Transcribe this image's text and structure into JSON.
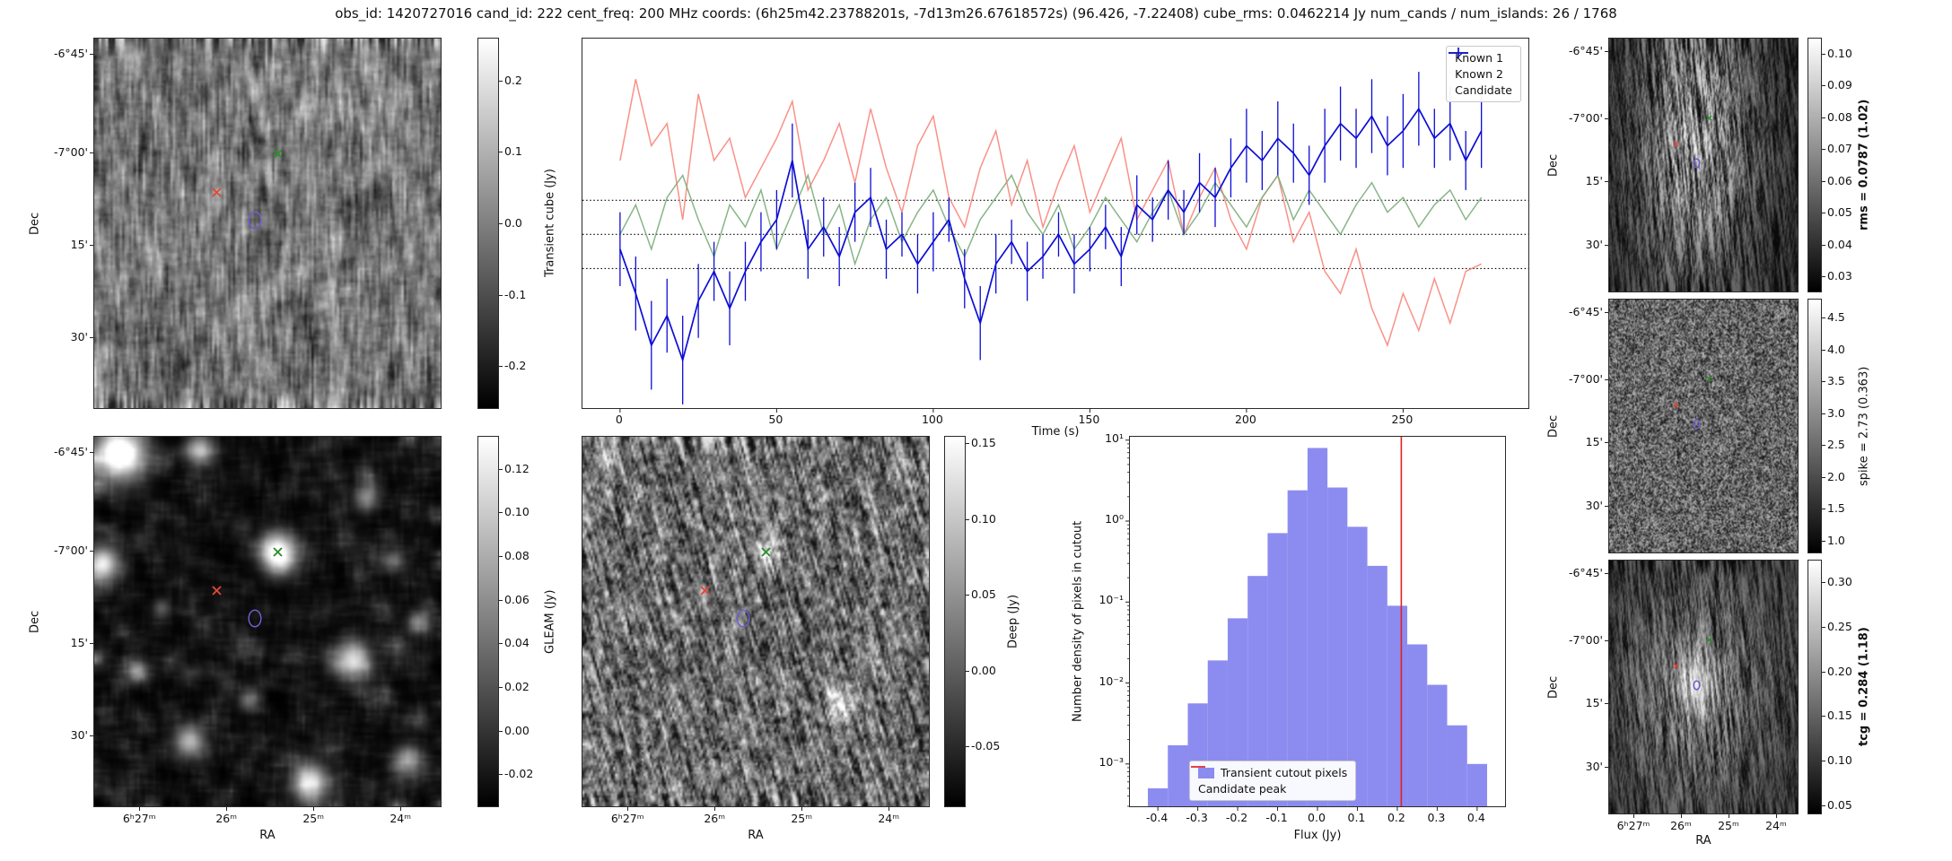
{
  "title": "obs_id: 1420727016 cand_id: 222 cent_freq: 200 MHz coords: (6h25m42.23788201s, -7d13m26.67618572s) (96.426, -7.22408) cube_rms: 0.0462214 Jy num_cands / num_islands: 26 / 1768",
  "axes": {
    "dec_label": "Dec",
    "ra_label": "RA",
    "dec_ticks": [
      "-6°45'",
      "-7°00'",
      "15'",
      "30'"
    ],
    "ra_ticks": [
      "6ʰ27ᵐ",
      "26ᵐ",
      "25ᵐ",
      "24ᵐ"
    ]
  },
  "markers": {
    "known1": {
      "name": "known1-x-marker",
      "x": 0.352,
      "y": 0.415,
      "color": "#e0483a"
    },
    "known2": {
      "name": "known2-x-marker",
      "x": 0.528,
      "y": 0.31,
      "color": "#2e8b2e"
    },
    "candidate": {
      "name": "candidate-ellipse-marker",
      "x": 0.462,
      "y": 0.488,
      "color": "#6a5fd0"
    }
  },
  "colorbars": {
    "transient": {
      "label": "Transient cube (Jy)",
      "bold": false,
      "vmin": -0.26,
      "vmax": 0.26,
      "tick_values": [
        0.2,
        0.1,
        0.0,
        -0.1,
        -0.2
      ],
      "tick_labels": [
        "0.2",
        "0.1",
        "0.0",
        "-0.1",
        "-0.2"
      ]
    },
    "gleam": {
      "label": "GLEAM (Jy)",
      "bold": false,
      "vmin": -0.035,
      "vmax": 0.135,
      "tick_values": [
        0.12,
        0.1,
        0.08,
        0.06,
        0.04,
        0.02,
        0.0,
        -0.02
      ],
      "tick_labels": [
        "0.12",
        "0.10",
        "0.08",
        "0.06",
        "0.04",
        "0.02",
        "0.00",
        "-0.02"
      ]
    },
    "deep": {
      "label": "Deep (Jy)",
      "bold": false,
      "vmin": -0.09,
      "vmax": 0.155,
      "tick_values": [
        0.15,
        0.1,
        0.05,
        0.0,
        -0.05
      ],
      "tick_labels": [
        "0.15",
        "0.10",
        "0.05",
        "0.00",
        "-0.05"
      ]
    },
    "rms": {
      "label": "rms = 0.0787 (1.02)",
      "bold": true,
      "vmin": 0.025,
      "vmax": 0.105,
      "tick_values": [
        0.1,
        0.09,
        0.08,
        0.07,
        0.06,
        0.05,
        0.04,
        0.03
      ],
      "tick_labels": [
        "0.10",
        "0.09",
        "0.08",
        "0.07",
        "0.06",
        "0.05",
        "0.04",
        "0.03"
      ]
    },
    "spike": {
      "label": "spike = 2.73 (0.363)",
      "bold": false,
      "vmin": 0.8,
      "vmax": 4.8,
      "tick_values": [
        4.5,
        4.0,
        3.5,
        3.0,
        2.5,
        2.0,
        1.5,
        1.0
      ],
      "tick_labels": [
        "4.5",
        "4.0",
        "3.5",
        "3.0",
        "2.5",
        "2.0",
        "1.5",
        "1.0"
      ]
    },
    "tcg": {
      "label": "tcg = 0.284 (1.18)",
      "bold": true,
      "vmin": 0.04,
      "vmax": 0.325,
      "tick_values": [
        0.3,
        0.25,
        0.2,
        0.15,
        0.1,
        0.05
      ],
      "tick_labels": [
        "0.30",
        "0.25",
        "0.20",
        "0.15",
        "0.10",
        "0.05"
      ]
    }
  },
  "chart_data": [
    {
      "type": "line",
      "xlabel": "Time (s)",
      "ylabel": "",
      "xlim": [
        -12,
        290
      ],
      "ylim": [
        -0.235,
        0.265
      ],
      "x_ticks": [
        0,
        50,
        100,
        150,
        200,
        250
      ],
      "x_tick_labels": [
        "0",
        "50",
        "100",
        "150",
        "200",
        "250"
      ],
      "threshold_lines": [
        0.0462,
        0.0,
        -0.0462
      ],
      "legend_position": "upper right",
      "x": [
        0,
        5,
        10,
        15,
        20,
        25,
        30,
        35,
        40,
        45,
        50,
        55,
        60,
        65,
        70,
        75,
        80,
        85,
        90,
        95,
        100,
        105,
        110,
        115,
        120,
        125,
        130,
        135,
        140,
        145,
        150,
        155,
        160,
        165,
        170,
        175,
        180,
        185,
        190,
        195,
        200,
        205,
        210,
        215,
        220,
        225,
        230,
        235,
        240,
        245,
        250,
        255,
        260,
        265,
        270,
        275
      ],
      "series": [
        {
          "name": "Known 1",
          "color": "#f8857b",
          "values": [
            0.1,
            0.21,
            0.12,
            0.15,
            0.02,
            0.19,
            0.1,
            0.13,
            0.05,
            0.09,
            0.13,
            0.18,
            0.06,
            0.1,
            0.15,
            0.07,
            0.17,
            0.09,
            0.03,
            0.12,
            0.16,
            0.05,
            0.01,
            0.09,
            0.14,
            0.04,
            0.1,
            0.01,
            0.07,
            0.12,
            0.03,
            0.08,
            0.13,
            0.02,
            0.06,
            0.1,
            0.0,
            0.05,
            0.09,
            0.02,
            -0.02,
            0.05,
            0.08,
            -0.01,
            0.03,
            -0.05,
            -0.08,
            -0.02,
            -0.1,
            -0.15,
            -0.08,
            -0.13,
            -0.06,
            -0.12,
            -0.05,
            -0.04
          ]
        },
        {
          "name": "Known 2",
          "color": "#7bad7b",
          "values": [
            0.0,
            0.04,
            -0.02,
            0.05,
            0.08,
            0.02,
            -0.03,
            0.04,
            0.01,
            0.06,
            -0.02,
            0.03,
            0.08,
            0.0,
            0.04,
            -0.04,
            0.02,
            0.05,
            -0.01,
            0.03,
            0.06,
            0.01,
            -0.03,
            0.02,
            0.05,
            0.08,
            0.03,
            0.0,
            0.04,
            -0.02,
            0.01,
            0.05,
            0.02,
            -0.01,
            0.03,
            0.06,
            0.0,
            0.03,
            0.07,
            0.04,
            0.01,
            0.05,
            0.08,
            0.02,
            0.06,
            0.03,
            0.0,
            0.04,
            0.07,
            0.03,
            0.05,
            0.01,
            0.04,
            0.06,
            0.02,
            0.05
          ]
        },
        {
          "name": "Candidate",
          "color": "#0d0dd6",
          "values": [
            -0.02,
            -0.08,
            -0.15,
            -0.11,
            -0.17,
            -0.09,
            -0.05,
            -0.1,
            -0.05,
            -0.01,
            0.02,
            0.1,
            -0.02,
            0.01,
            -0.03,
            0.03,
            0.05,
            -0.02,
            0.0,
            -0.04,
            -0.01,
            0.02,
            -0.06,
            -0.12,
            -0.04,
            -0.01,
            -0.05,
            -0.03,
            0.0,
            -0.04,
            -0.02,
            0.01,
            -0.03,
            0.04,
            0.02,
            0.06,
            0.03,
            0.07,
            0.05,
            0.09,
            0.12,
            0.1,
            0.13,
            0.11,
            0.08,
            0.12,
            0.15,
            0.13,
            0.16,
            0.12,
            0.14,
            0.17,
            0.13,
            0.15,
            0.1,
            0.14
          ],
          "errors": [
            0.05,
            0.05,
            0.06,
            0.05,
            0.06,
            0.05,
            0.04,
            0.05,
            0.04,
            0.04,
            0.04,
            0.05,
            0.04,
            0.04,
            0.04,
            0.04,
            0.04,
            0.04,
            0.03,
            0.04,
            0.04,
            0.03,
            0.04,
            0.05,
            0.04,
            0.03,
            0.04,
            0.03,
            0.03,
            0.04,
            0.03,
            0.03,
            0.04,
            0.04,
            0.03,
            0.04,
            0.03,
            0.04,
            0.04,
            0.04,
            0.05,
            0.04,
            0.05,
            0.04,
            0.04,
            0.05,
            0.05,
            0.04,
            0.05,
            0.04,
            0.05,
            0.05,
            0.04,
            0.05,
            0.04,
            0.05
          ]
        }
      ]
    },
    {
      "type": "bar",
      "xlabel": "Flux (Jy)",
      "ylabel": "Number density of pixels in cutout",
      "xlim": [
        -0.47,
        0.47
      ],
      "ylog": true,
      "ylim": [
        0.0003,
        11
      ],
      "x_ticks": [
        -0.4,
        -0.3,
        -0.2,
        -0.1,
        0.0,
        0.1,
        0.2,
        0.3,
        0.4
      ],
      "x_tick_labels": [
        "-0.4",
        "-0.3",
        "-0.2",
        "-0.1",
        "0.0",
        "0.1",
        "0.2",
        "0.3",
        "0.4"
      ],
      "y_tick_values": [
        10,
        1,
        0.1,
        0.01,
        0.001
      ],
      "y_tick_labels": [
        "10¹",
        "10⁰",
        "10⁻¹",
        "10⁻²",
        "10⁻³"
      ],
      "bin_edges": [
        -0.425,
        -0.375,
        -0.325,
        -0.275,
        -0.225,
        -0.175,
        -0.125,
        -0.075,
        -0.025,
        0.025,
        0.075,
        0.125,
        0.175,
        0.225,
        0.275,
        0.325,
        0.375,
        0.425
      ],
      "densities": [
        0.0005,
        0.0017,
        0.0056,
        0.019,
        0.063,
        0.21,
        0.71,
        2.4,
        8.0,
        2.6,
        0.85,
        0.28,
        0.09,
        0.03,
        0.0095,
        0.003,
        0.001
      ],
      "bar_color": "#8c8cf0",
      "candidate_peak": 0.21,
      "peak_color": "#e02222",
      "legend": [
        "Transient cutout pixels",
        "Candidate peak"
      ],
      "legend_position": "lower center"
    }
  ]
}
